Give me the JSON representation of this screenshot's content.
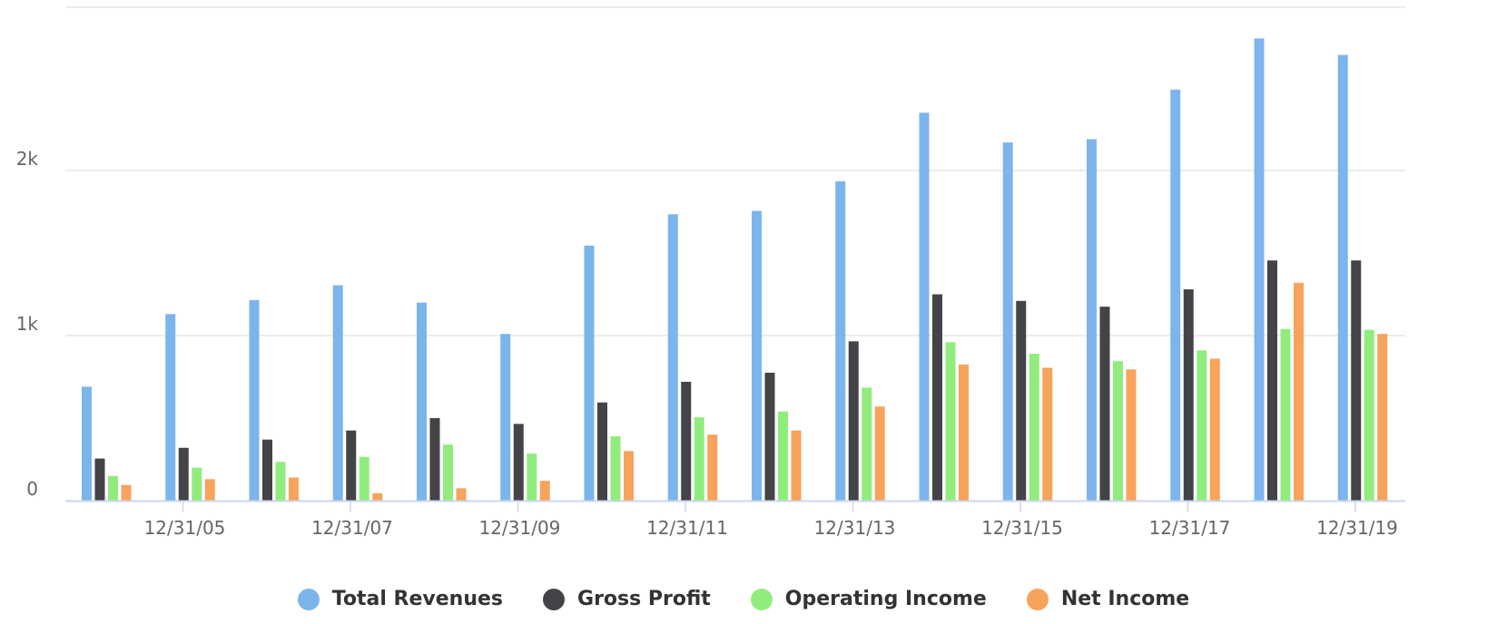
{
  "chart_data": {
    "type": "bar",
    "categories": [
      "12/31/04",
      "12/31/05",
      "12/31/06",
      "12/31/07",
      "12/31/08",
      "12/31/09",
      "12/31/10",
      "12/31/11",
      "12/31/12",
      "12/31/13",
      "12/31/14",
      "12/31/15",
      "12/31/16",
      "12/31/17",
      "12/31/18",
      "12/31/19"
    ],
    "x_tick_labels": [
      "12/31/05",
      "12/31/07",
      "12/31/09",
      "12/31/11",
      "12/31/13",
      "12/31/15",
      "12/31/17",
      "12/31/19"
    ],
    "y_tick_labels": [
      "0",
      "1k",
      "2k"
    ],
    "ylim": [
      0,
      3000
    ],
    "grid": true,
    "legend_position": "bottom",
    "series": [
      {
        "name": "Total Revenues",
        "color": "#7cb5ec",
        "values": [
          690,
          1130,
          1215,
          1305,
          1200,
          1010,
          1545,
          1735,
          1755,
          1935,
          2350,
          2170,
          2190,
          2490,
          2800,
          2700
        ]
      },
      {
        "name": "Gross Profit",
        "color": "#434348",
        "values": [
          255,
          320,
          370,
          425,
          500,
          465,
          595,
          720,
          775,
          965,
          1250,
          1210,
          1175,
          1280,
          1455,
          1455
        ]
      },
      {
        "name": "Operating Income",
        "color": "#90ed7d",
        "values": [
          150,
          200,
          235,
          265,
          340,
          285,
          390,
          505,
          540,
          685,
          960,
          890,
          845,
          910,
          1040,
          1035
        ]
      },
      {
        "name": "Net Income",
        "color": "#f7a35c",
        "values": [
          95,
          130,
          140,
          45,
          75,
          120,
          300,
          400,
          425,
          570,
          825,
          805,
          795,
          860,
          1320,
          1010
        ]
      }
    ]
  }
}
